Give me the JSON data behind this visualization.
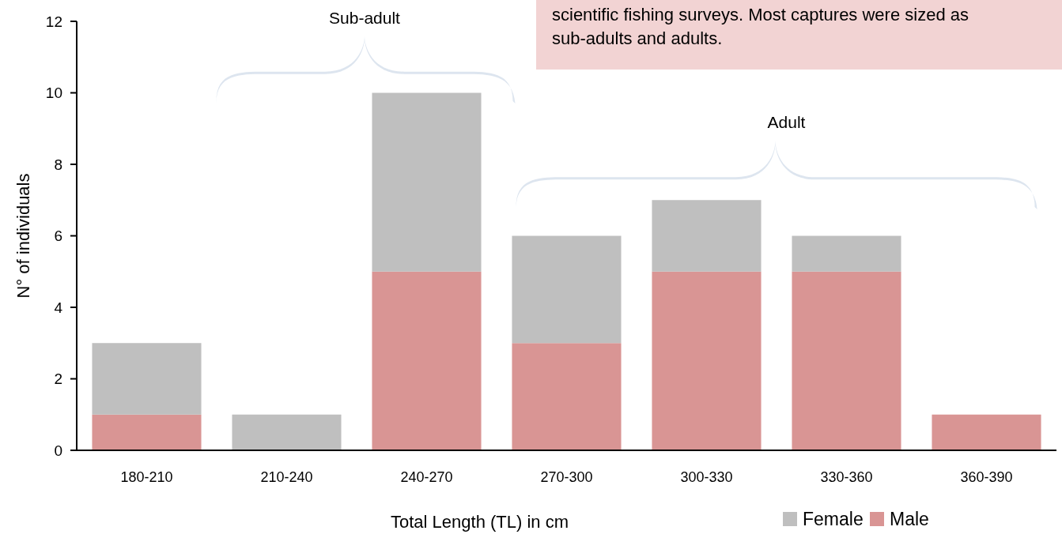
{
  "chart_data": {
    "type": "bar",
    "stacked": true,
    "xlabel": "Total Length (TL) in cm",
    "ylabel": "N° of individuals",
    "categories": [
      "180-210",
      "210-240",
      "240-270",
      "270-300",
      "300-330",
      "330-360",
      "360-390"
    ],
    "series": [
      {
        "name": "Male",
        "color": "#d99594",
        "values": [
          1,
          0,
          5,
          3,
          5,
          5,
          1
        ]
      },
      {
        "name": "Female",
        "color": "#bfbfbf",
        "values": [
          2,
          1,
          5,
          3,
          2,
          1,
          0
        ]
      }
    ],
    "ylim": [
      0,
      12
    ],
    "yticks": [
      0,
      2,
      4,
      6,
      8,
      10,
      12
    ],
    "grid": false,
    "legend": "bottom right",
    "annotations": [
      "Sub-adult",
      "Adult",
      "scientific fishing surveys. Most captures were sized as sub-adults and adults."
    ]
  }
}
